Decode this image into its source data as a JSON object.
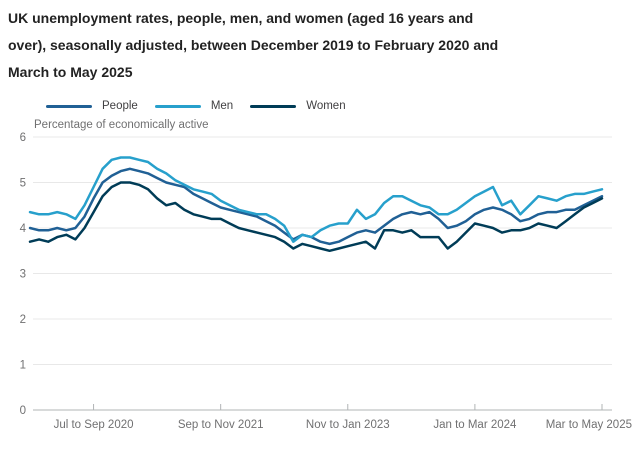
{
  "title": "UK unemployment rates, people, men, and women (aged 16 years and over), seasonally adjusted, between December 2019 to February 2020 and March to May 2025",
  "title_lines": [
    "UK unemployment rates, people, men, and women (aged 16 years and",
    "over), seasonally adjusted, between December 2019 to February 2020 and",
    "March to May 2025"
  ],
  "subtitle": "Percentage of economically active",
  "legend": [
    {
      "label": "People",
      "color": "#206095"
    },
    {
      "label": "Men",
      "color": "#27A0CC"
    },
    {
      "label": "Women",
      "color": "#003C57"
    }
  ],
  "colors": {
    "title_text": "#222222",
    "axis_text": "#707071",
    "legend_text": "#414042",
    "gridline": "#e8e8e8",
    "axis_line": "#b1b4b6",
    "background": "#ffffff"
  },
  "chart_data": {
    "type": "line",
    "title": "UK unemployment rates, people, men, and women (aged 16 years and over), seasonally adjusted, between December 2019 to February 2020 and March to May 2025",
    "ylabel": "Percentage of economically active",
    "xlabel": "",
    "ylim": [
      0,
      6
    ],
    "yticks": [
      0,
      1,
      2,
      3,
      4,
      5,
      6
    ],
    "grid": "horizontal",
    "legend_position": "top",
    "x_interval": "rolling 3-month periods, monthly steps",
    "x_start": "Dec 2019 to Feb 2020",
    "x_end": "Mar to May 2025",
    "n_points": 64,
    "xticks": [
      {
        "index": 7,
        "label": "Jul to Sep 2020"
      },
      {
        "index": 21,
        "label": "Sep to Nov 2021"
      },
      {
        "index": 35,
        "label": "Nov to Jan 2023"
      },
      {
        "index": 49,
        "label": "Jan to Mar 2024"
      },
      {
        "index": 63,
        "label": "Mar to May 2025"
      }
    ],
    "series": [
      {
        "name": "People",
        "color": "#206095",
        "values": [
          4.0,
          3.95,
          3.95,
          4.0,
          3.95,
          4.0,
          4.25,
          4.65,
          5.0,
          5.15,
          5.25,
          5.3,
          5.25,
          5.2,
          5.1,
          5.0,
          4.95,
          4.9,
          4.75,
          4.65,
          4.55,
          4.45,
          4.4,
          4.35,
          4.3,
          4.25,
          4.15,
          4.05,
          3.9,
          3.75,
          3.85,
          3.8,
          3.7,
          3.65,
          3.7,
          3.8,
          3.9,
          3.95,
          3.9,
          4.05,
          4.2,
          4.3,
          4.35,
          4.3,
          4.35,
          4.2,
          4.0,
          4.05,
          4.15,
          4.3,
          4.4,
          4.45,
          4.4,
          4.3,
          4.15,
          4.2,
          4.3,
          4.35,
          4.35,
          4.4,
          4.4,
          4.5,
          4.6,
          4.7
        ]
      },
      {
        "name": "Men",
        "color": "#27A0CC",
        "values": [
          4.35,
          4.3,
          4.3,
          4.35,
          4.3,
          4.2,
          4.5,
          4.9,
          5.3,
          5.5,
          5.55,
          5.55,
          5.5,
          5.45,
          5.3,
          5.2,
          5.05,
          4.95,
          4.85,
          4.8,
          4.75,
          4.6,
          4.5,
          4.4,
          4.35,
          4.3,
          4.3,
          4.2,
          4.05,
          3.7,
          3.85,
          3.8,
          3.95,
          4.05,
          4.1,
          4.1,
          4.4,
          4.2,
          4.3,
          4.55,
          4.7,
          4.7,
          4.6,
          4.5,
          4.45,
          4.3,
          4.3,
          4.4,
          4.55,
          4.7,
          4.8,
          4.9,
          4.5,
          4.6,
          4.3,
          4.5,
          4.7,
          4.65,
          4.6,
          4.7,
          4.75,
          4.75,
          4.8,
          4.85
        ]
      },
      {
        "name": "Women",
        "color": "#003C57",
        "values": [
          3.7,
          3.75,
          3.7,
          3.8,
          3.85,
          3.75,
          4.0,
          4.35,
          4.7,
          4.9,
          5.0,
          5.0,
          4.95,
          4.85,
          4.65,
          4.5,
          4.55,
          4.4,
          4.3,
          4.25,
          4.2,
          4.2,
          4.1,
          4.0,
          3.95,
          3.9,
          3.85,
          3.8,
          3.7,
          3.55,
          3.65,
          3.6,
          3.55,
          3.5,
          3.55,
          3.6,
          3.65,
          3.7,
          3.55,
          3.95,
          3.95,
          3.9,
          3.95,
          3.8,
          3.8,
          3.8,
          3.55,
          3.7,
          3.9,
          4.1,
          4.05,
          4.0,
          3.9,
          3.95,
          3.95,
          4.0,
          4.1,
          4.05,
          4.0,
          4.15,
          4.3,
          4.45,
          4.55,
          4.65
        ]
      }
    ]
  }
}
